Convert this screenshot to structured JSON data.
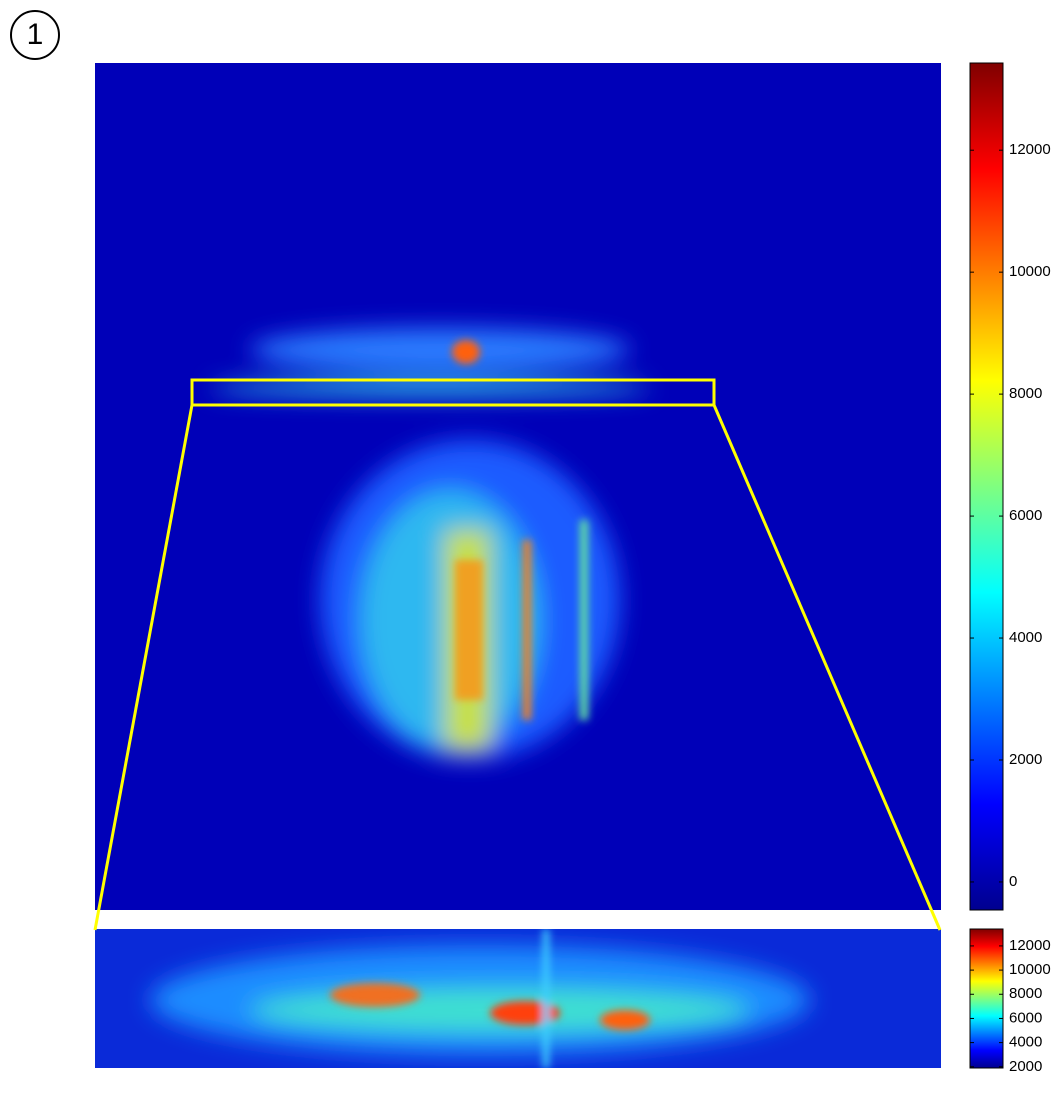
{
  "panel_label": "1",
  "chart_data": [
    {
      "type": "heatmap",
      "colormap": "jet",
      "clim": [
        -460,
        13430
      ],
      "cticks": [
        0,
        2000,
        4000,
        6000,
        8000,
        10000,
        12000
      ]
    },
    {
      "type": "heatmap",
      "colormap": "jet",
      "clim": [
        1900,
        13400
      ],
      "cticks": [
        2000,
        4000,
        6000,
        8000,
        10000,
        12000
      ]
    }
  ]
}
